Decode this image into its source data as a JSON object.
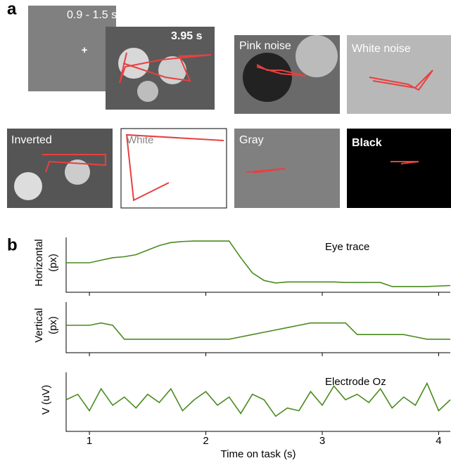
{
  "panel_a": {
    "label": "a",
    "timings": [
      "0.9 - 1.5 s",
      "3.95 s"
    ],
    "conditions": [
      "Pink noise",
      "White noise",
      "Inverted",
      "White",
      "Gray",
      "Black"
    ]
  },
  "panel_b": {
    "label": "b"
  },
  "chart_data": [
    {
      "type": "line",
      "ylabel": [
        "Horizontal",
        "(px)"
      ],
      "annotation": "Eye trace",
      "x": [
        0.8,
        0.9,
        1.0,
        1.1,
        1.2,
        1.3,
        1.4,
        1.5,
        1.6,
        1.7,
        1.8,
        1.9,
        2.0,
        2.1,
        2.2,
        2.3,
        2.4,
        2.5,
        2.6,
        2.7,
        2.8,
        2.9,
        3.0,
        3.1,
        3.2,
        3.3,
        3.4,
        3.5,
        3.6,
        3.7,
        3.8,
        3.9,
        4.0,
        4.1
      ],
      "series": [
        {
          "color": "#4a8a1e",
          "values": [
            0.5,
            0.5,
            0.5,
            0.55,
            0.6,
            0.62,
            0.66,
            0.75,
            0.84,
            0.9,
            0.92,
            0.93,
            0.93,
            0.93,
            0.93,
            0.6,
            0.3,
            0.15,
            0.1,
            0.12,
            0.12,
            0.12,
            0.12,
            0.12,
            0.11,
            0.11,
            0.11,
            0.11,
            0.03,
            0.03,
            0.03,
            0.03,
            0.04,
            0.05
          ]
        }
      ],
      "xlim": [
        0.8,
        4.1
      ],
      "ylim": [
        0,
        1
      ]
    },
    {
      "type": "line",
      "ylabel": [
        "Vertical",
        "(px)"
      ],
      "x": [
        0.8,
        0.9,
        1.0,
        1.1,
        1.2,
        1.3,
        1.4,
        1.5,
        1.6,
        1.7,
        1.8,
        1.9,
        2.0,
        2.1,
        2.2,
        2.3,
        2.4,
        2.5,
        2.6,
        2.7,
        2.8,
        2.9,
        3.0,
        3.1,
        3.2,
        3.3,
        3.4,
        3.5,
        3.6,
        3.7,
        3.8,
        3.9,
        4.0,
        4.1
      ],
      "series": [
        {
          "color": "#4a8a1e",
          "values": [
            0.5,
            0.5,
            0.5,
            0.55,
            0.5,
            0.2,
            0.2,
            0.2,
            0.2,
            0.2,
            0.2,
            0.2,
            0.2,
            0.2,
            0.2,
            0.25,
            0.3,
            0.35,
            0.4,
            0.45,
            0.5,
            0.55,
            0.55,
            0.55,
            0.55,
            0.3,
            0.3,
            0.3,
            0.3,
            0.3,
            0.25,
            0.2,
            0.2,
            0.2
          ]
        }
      ],
      "xlim": [
        0.8,
        4.1
      ],
      "ylim": [
        0,
        1
      ]
    },
    {
      "type": "line",
      "ylabel": [
        "V (uV)"
      ],
      "annotation": "Electrode Oz",
      "xlabel": "Time on task (s)",
      "x": [
        0.8,
        0.9,
        1.0,
        1.1,
        1.2,
        1.3,
        1.4,
        1.5,
        1.6,
        1.7,
        1.8,
        1.9,
        2.0,
        2.1,
        2.2,
        2.3,
        2.4,
        2.5,
        2.6,
        2.7,
        2.8,
        2.9,
        3.0,
        3.1,
        3.2,
        3.3,
        3.4,
        3.5,
        3.6,
        3.7,
        3.8,
        3.9,
        4.0,
        4.1
      ],
      "series": [
        {
          "color": "#4a8a1e",
          "values": [
            0.5,
            0.6,
            0.3,
            0.7,
            0.4,
            0.55,
            0.35,
            0.6,
            0.45,
            0.7,
            0.3,
            0.5,
            0.65,
            0.4,
            0.55,
            0.25,
            0.6,
            0.5,
            0.2,
            0.35,
            0.3,
            0.65,
            0.4,
            0.75,
            0.5,
            0.6,
            0.45,
            0.7,
            0.35,
            0.55,
            0.4,
            0.8,
            0.3,
            0.5
          ]
        }
      ],
      "xlim": [
        0.8,
        4.1
      ],
      "ylim": [
        0,
        1
      ],
      "xticks": [
        1,
        2,
        3,
        4
      ]
    }
  ]
}
